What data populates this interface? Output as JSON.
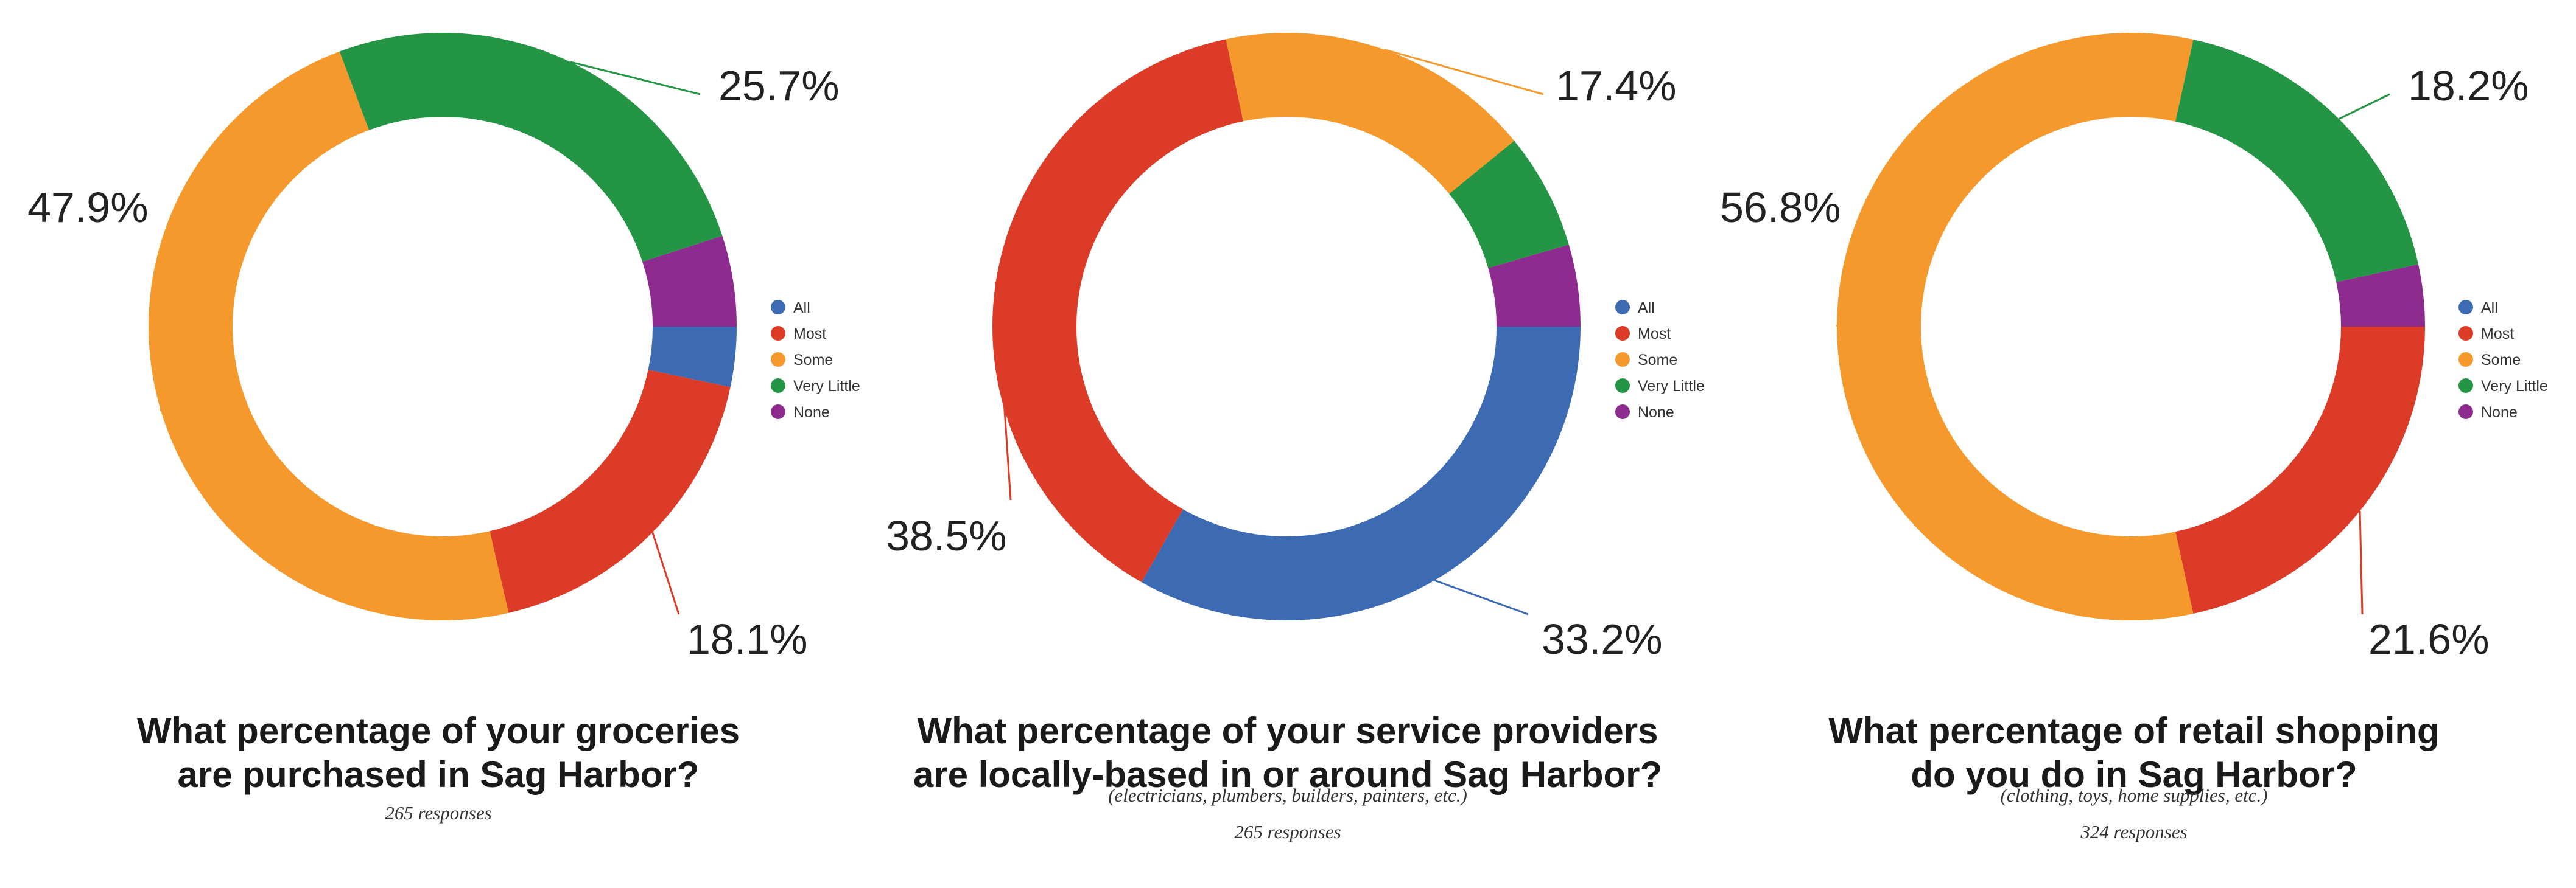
{
  "legend": {
    "items": [
      {
        "label": "All",
        "color": "#3d6bb3"
      },
      {
        "label": "Most",
        "color": "#db3b27"
      },
      {
        "label": "Some",
        "color": "#f5992d"
      },
      {
        "label": "Very Little",
        "color": "#249544"
      },
      {
        "label": "None",
        "color": "#8d2b8e"
      }
    ]
  },
  "chart_data": [
    {
      "type": "pie",
      "title_lines": [
        "What percentage of your groceries",
        "are purchased in Sag Harbor?"
      ],
      "note": "",
      "responses": "265 responses",
      "slices": [
        {
          "label": "All",
          "value": 3.3
        },
        {
          "label": "Most",
          "value": 18.1
        },
        {
          "label": "Some",
          "value": 47.9
        },
        {
          "label": "Very Little",
          "value": 25.7
        },
        {
          "label": "None",
          "value": 5.0
        }
      ],
      "callouts": [
        {
          "label": "Very Little",
          "text": "25.7%"
        },
        {
          "label": "Some",
          "text": "47.9%"
        },
        {
          "label": "Most",
          "text": "18.1%"
        }
      ]
    },
    {
      "type": "pie",
      "title_lines": [
        "What percentage of your service providers",
        "are locally-based in or around Sag Harbor?"
      ],
      "note": "(electricians, plumbers, builders, painters, etc.)",
      "responses": "265 responses",
      "slices": [
        {
          "label": "All",
          "value": 33.2
        },
        {
          "label": "Most",
          "value": 38.5
        },
        {
          "label": "Some",
          "value": 17.4
        },
        {
          "label": "Very Little",
          "value": 6.4
        },
        {
          "label": "None",
          "value": 4.5
        }
      ],
      "callouts": [
        {
          "label": "Some",
          "text": "17.4%"
        },
        {
          "label": "Most",
          "text": "38.5%"
        },
        {
          "label": "All",
          "text": "33.2%"
        }
      ]
    },
    {
      "type": "pie",
      "title_lines": [
        "What percentage of retail shopping",
        "do you do in Sag Harbor?"
      ],
      "note": "(clothing, toys, home supplies, etc.)",
      "responses": "324 responses",
      "slices": [
        {
          "label": "All",
          "value": 0
        },
        {
          "label": "Most",
          "value": 21.6
        },
        {
          "label": "Some",
          "value": 56.8
        },
        {
          "label": "Very Little",
          "value": 18.2
        },
        {
          "label": "None",
          "value": 3.4
        }
      ],
      "callouts": [
        {
          "label": "Very Little",
          "text": "18.2%"
        },
        {
          "label": "Some",
          "text": "56.8%"
        },
        {
          "label": "Most",
          "text": "21.6%"
        }
      ]
    }
  ]
}
